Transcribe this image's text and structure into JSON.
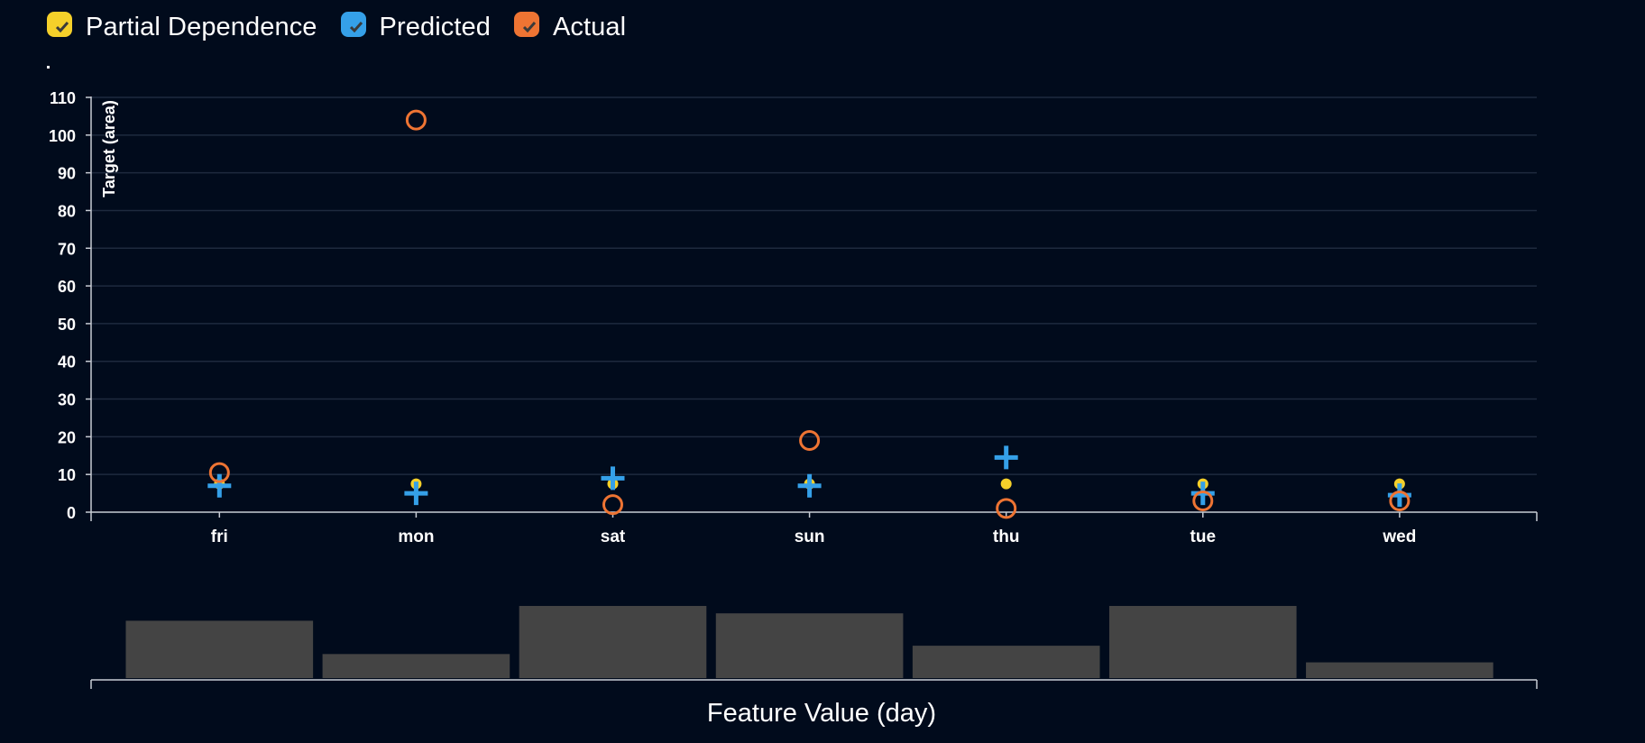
{
  "legend": {
    "items": [
      {
        "key": "partial",
        "label": "Partial Dependence",
        "color": "#f5d02a"
      },
      {
        "key": "predicted",
        "label": "Predicted",
        "color": "#35a0e8"
      },
      {
        "key": "actual",
        "label": "Actual",
        "color": "#ee7433"
      }
    ]
  },
  "chart_data": {
    "type": "scatter",
    "ylabel": "Target (area)",
    "xlabel": "Feature Value (day)",
    "categories": [
      "fri",
      "mon",
      "sat",
      "sun",
      "thu",
      "tue",
      "wed"
    ],
    "ylim": [
      0,
      110
    ],
    "yticks": [
      0,
      10,
      20,
      30,
      40,
      50,
      60,
      70,
      80,
      90,
      100,
      110
    ],
    "grid": true,
    "legend_position": "top-left",
    "series": [
      {
        "name": "Partial Dependence",
        "marker": "dot",
        "color": "#f5d02a",
        "values": [
          7.5,
          7.5,
          7.5,
          7.5,
          7.5,
          7.5,
          7.5
        ]
      },
      {
        "name": "Predicted",
        "marker": "plus",
        "color": "#35a0e8",
        "values": [
          7,
          5,
          9,
          7,
          14.5,
          5,
          4.5
        ]
      },
      {
        "name": "Actual",
        "marker": "circle",
        "color": "#ee7433",
        "values": [
          10.5,
          104,
          2,
          19,
          1,
          3,
          3
        ]
      }
    ],
    "histogram": {
      "categories": [
        "fri",
        "mon",
        "sat",
        "sun",
        "thu",
        "tue",
        "wed"
      ],
      "counts": [
        62,
        26,
        78,
        70,
        35,
        78,
        17
      ],
      "color": "#444444"
    }
  }
}
